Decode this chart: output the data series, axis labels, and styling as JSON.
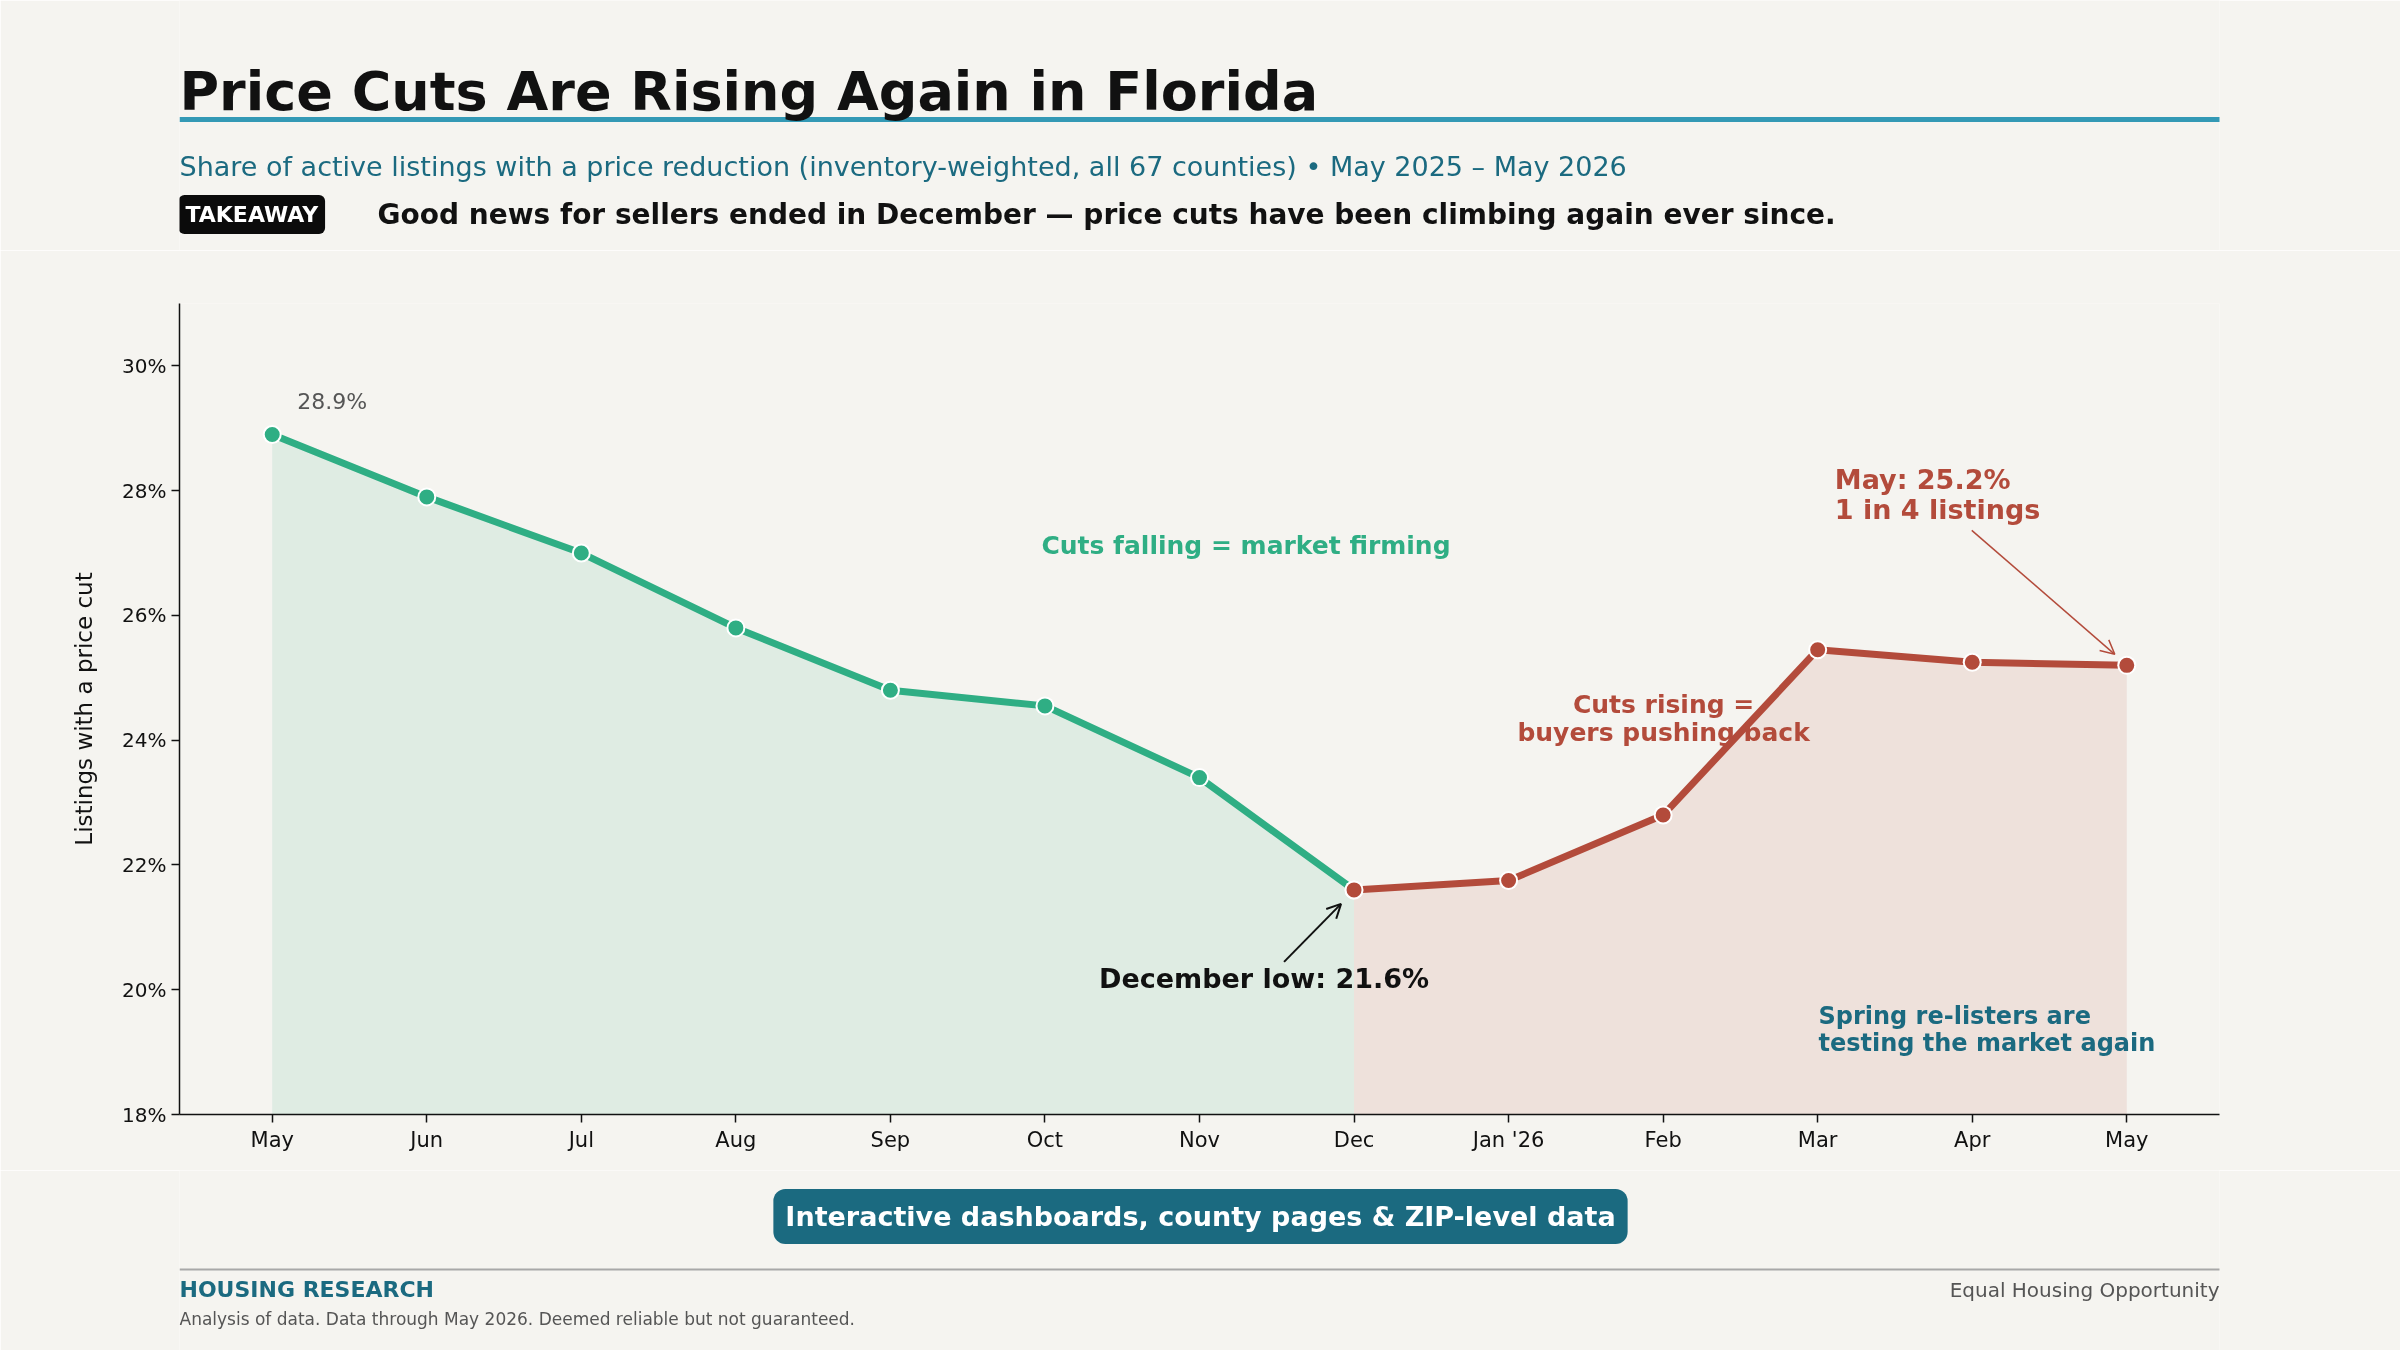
{
  "chart_data": {
    "type": "area",
    "title": "Price Cuts Are Rising Again in Florida",
    "subtitle": "Share of active listings with a price reduction (inventory-weighted, all 67 counties)  •  May 2025 – May 2026",
    "ylabel": "Listings with a price cut",
    "categories": [
      "May",
      "Jun",
      "Jul",
      "Aug",
      "Sep",
      "Oct",
      "Nov",
      "Dec",
      "Jan '26",
      "Feb",
      "Mar",
      "Apr",
      "May"
    ],
    "series": [
      {
        "name": "Cuts falling = market firming",
        "color": "#2fae84",
        "values": [
          28.9,
          27.9,
          27.0,
          25.8,
          24.8,
          24.55,
          23.4,
          21.6,
          null,
          null,
          null,
          null,
          null
        ],
        "value_labels": [
          "28.9%",
          null,
          null,
          null,
          null,
          null,
          null,
          null,
          null,
          null,
          null,
          null,
          null
        ]
      },
      {
        "name": "Cuts rising =\nbuyers pushing back",
        "color": "#b34b3b",
        "values": [
          null,
          null,
          null,
          null,
          null,
          null,
          null,
          21.6,
          21.75,
          22.8,
          25.45,
          25.25,
          25.2
        ]
      }
    ],
    "ylim": [
      18,
      31
    ],
    "yticks": [
      {
        "value": 18,
        "label": "18%"
      },
      {
        "value": 20,
        "label": "20%"
      },
      {
        "value": 22,
        "label": "22%"
      },
      {
        "value": 24,
        "label": "24%"
      },
      {
        "value": 26,
        "label": "26%"
      },
      {
        "value": 28,
        "label": "28%"
      },
      {
        "value": 30,
        "label": "30%"
      }
    ],
    "marker": "circle",
    "line_style": "solid",
    "annotations": [
      "TAKEAWAY",
      "Good news for sellers ended in December — price cuts have been climbing again ever since.",
      "Spring re-listers are\ntesting the market again",
      "Interactive dashboards, county pages & ZIP-level data",
      "HOUSING RESEARCH",
      "Equal Housing Opportunity",
      "Analysis of data. Data through May 2026. Deemed reliable but not guaranteed.",
      "May: 25.2%\n1 in 4 listings",
      {
        "text": "December low: 21.6%",
        "x": "Dec",
        "y": 21.6
      }
    ]
  }
}
